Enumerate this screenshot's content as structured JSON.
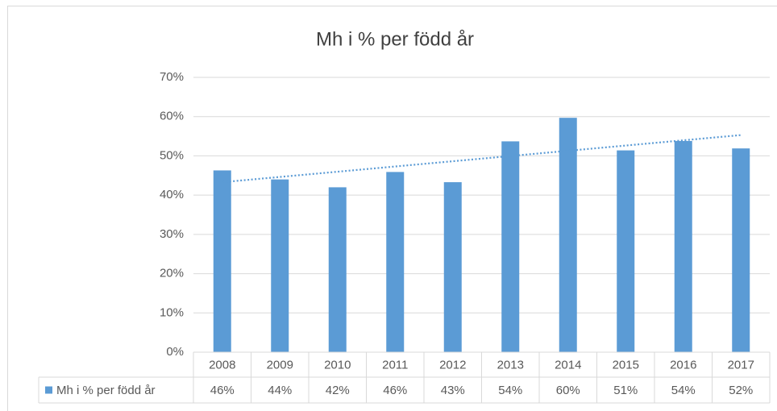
{
  "chart_data": {
    "type": "bar",
    "title": "Mh i % per född år",
    "categories": [
      "2008",
      "2009",
      "2010",
      "2011",
      "2012",
      "2013",
      "2014",
      "2015",
      "2016",
      "2017"
    ],
    "series": [
      {
        "name": "Mh i % per född år",
        "color": "#5b9bd5",
        "values": [
          46.3,
          44,
          42,
          45.9,
          43.3,
          53.7,
          59.7,
          51.4,
          53.8,
          51.9
        ],
        "value_labels": [
          "46%",
          "44%",
          "42%",
          "46%",
          "43%",
          "54%",
          "60%",
          "51%",
          "54%",
          "52%"
        ]
      }
    ],
    "ylim": [
      0,
      70
    ],
    "yticks": [
      {
        "value": 0,
        "label": "0%"
      },
      {
        "value": 10,
        "label": "10%"
      },
      {
        "value": 20,
        "label": "20%"
      },
      {
        "value": 30,
        "label": "30%"
      },
      {
        "value": 40,
        "label": "40%"
      },
      {
        "value": 50,
        "label": "50%"
      },
      {
        "value": 60,
        "label": "60%"
      },
      {
        "value": 70,
        "label": "70%"
      }
    ],
    "grid": true,
    "trendline": {
      "values": [
        43.3,
        55.3
      ],
      "color": "#5b9bd5",
      "style": "dotted"
    },
    "data_table": true
  }
}
